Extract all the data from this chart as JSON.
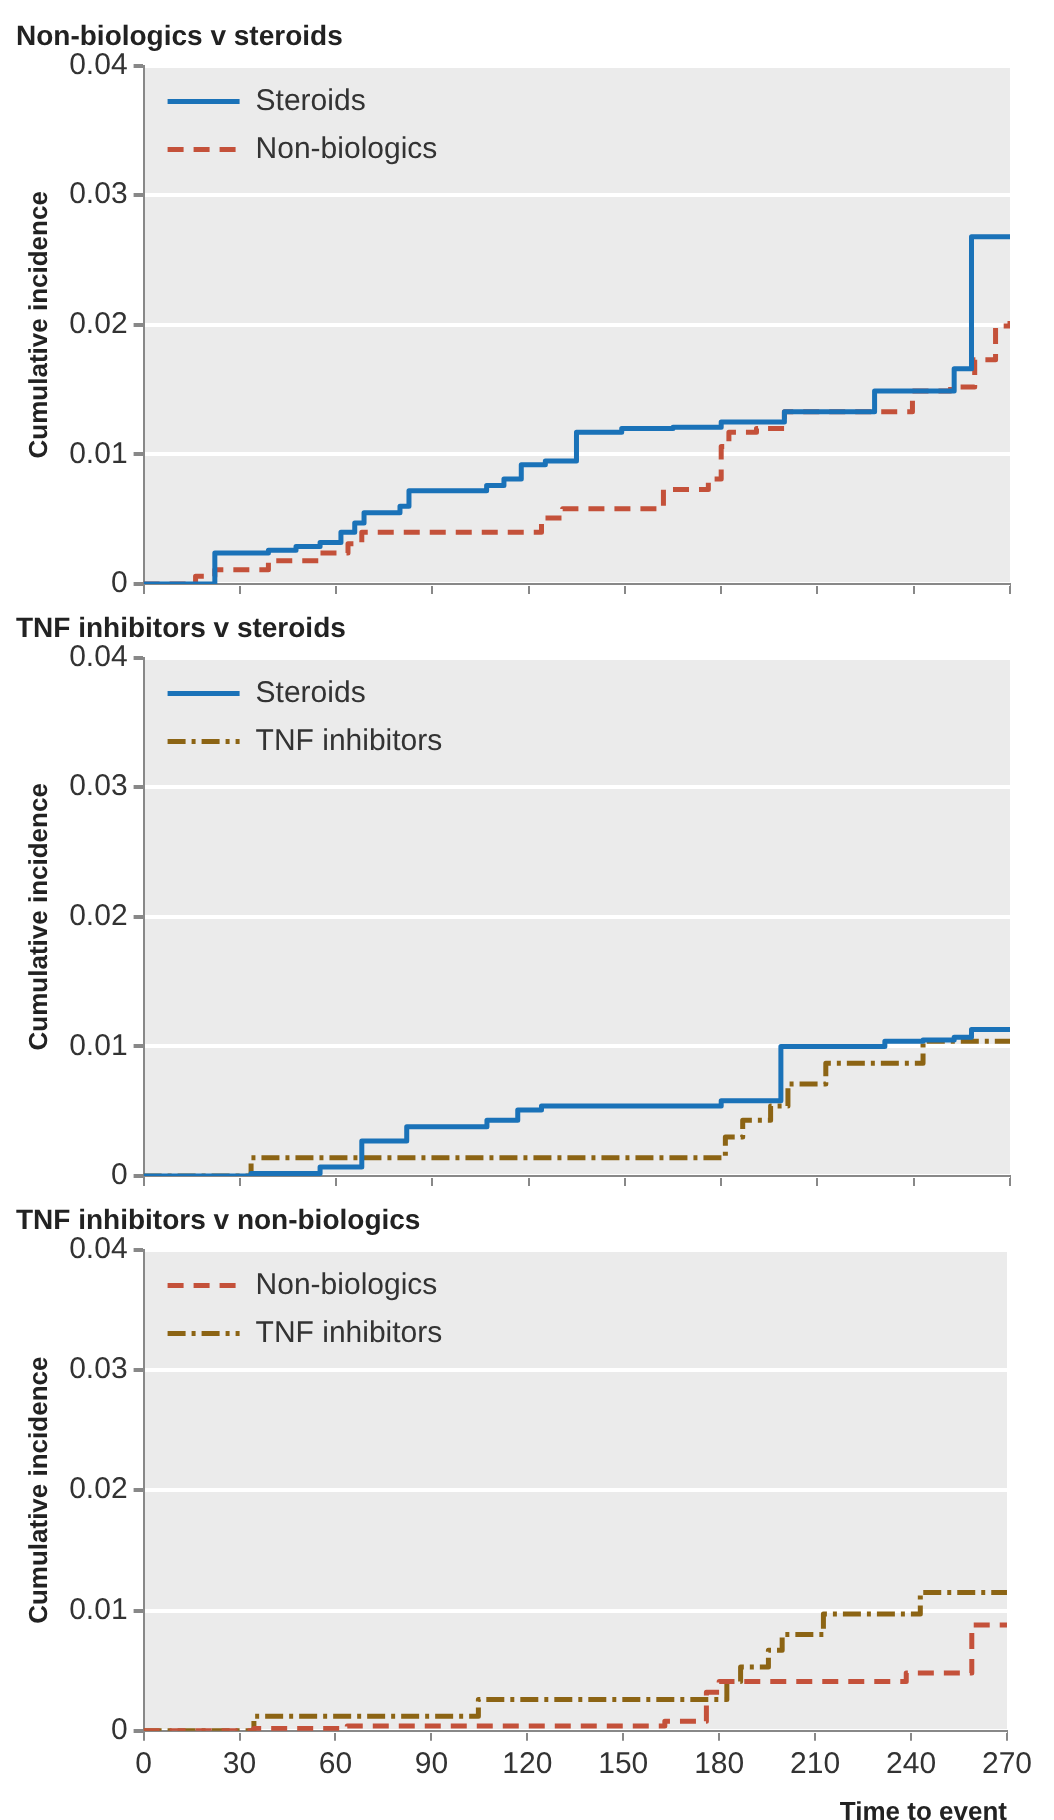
{
  "chart_data": [
    {
      "type": "step",
      "title": "Non-biologics v steroids",
      "ylabel": "Cumulative incidence",
      "xlim": [
        0,
        270
      ],
      "xticks": [
        0,
        30,
        60,
        90,
        120,
        150,
        180,
        210,
        240,
        270
      ],
      "ylim": [
        0,
        0.04
      ],
      "yticks": [
        0,
        0.01,
        0.02,
        0.03,
        0.04
      ],
      "tick_labels": "y",
      "grid": "y",
      "legend": "top left",
      "series": [
        {
          "name": "Steroids",
          "color": "#1a72b8",
          "line_style": "solid",
          "x": [
            0,
            22.2,
            38.9,
            47.5,
            55,
            61.5,
            65.8,
            68.7,
            79.9,
            82.7,
            106.9,
            112.3,
            117.7,
            125.2,
            134.9,
            149,
            165,
            180,
            199.7,
            227.8,
            252.6,
            258,
            270
          ],
          "values": [
            0,
            0.0024,
            0.0026,
            0.0029,
            0.0032,
            0.004,
            0.0047,
            0.0055,
            0.006,
            0.0072,
            0.0076,
            0.0081,
            0.0092,
            0.0095,
            0.0117,
            0.012,
            0.0121,
            0.0125,
            0.0133,
            0.0149,
            0.0166,
            0.0268,
            0.0268
          ]
        },
        {
          "name": "Non-biologics",
          "color": "#c4513a",
          "line_style": "dashed",
          "x": [
            0,
            16.2,
            22.2,
            38.9,
            55,
            63.7,
            68,
            124,
            130.6,
            162,
            176,
            180,
            182.4,
            191,
            199.7,
            239.6,
            251.5,
            259,
            265.5,
            270
          ],
          "values": [
            0,
            0.0006,
            0.0011,
            0.0018,
            0.0024,
            0.0031,
            0.004,
            0.0051,
            0.0058,
            0.0073,
            0.0081,
            0.0106,
            0.0117,
            0.012,
            0.0133,
            0.0149,
            0.0152,
            0.0173,
            0.0199,
            0.0203
          ]
        }
      ]
    },
    {
      "type": "step",
      "title": "TNF inhibitors v steroids",
      "ylabel": "Cumulative incidence",
      "xlim": [
        0,
        270
      ],
      "xticks": [
        0,
        30,
        60,
        90,
        120,
        150,
        180,
        210,
        240,
        270
      ],
      "ylim": [
        0,
        0.04
      ],
      "yticks": [
        0,
        0.01,
        0.02,
        0.03,
        0.04
      ],
      "tick_labels": "y",
      "grid": "y",
      "legend": "top left",
      "series": [
        {
          "name": "Steroids",
          "color": "#1a72b8",
          "line_style": "solid",
          "x": [
            0,
            33.5,
            55,
            68,
            82,
            107,
            116.6,
            124,
            180,
            198.6,
            231,
            242.9,
            252.6,
            258,
            270
          ],
          "values": [
            0,
            0.0002,
            0.0007,
            0.0027,
            0.0038,
            0.0043,
            0.0051,
            0.0054,
            0.0058,
            0.01,
            0.0104,
            0.0105,
            0.0107,
            0.0113,
            0.0113
          ]
        },
        {
          "name": "TNF inhibitors",
          "color": "#8c6414",
          "line_style": "dashdot",
          "x": [
            0,
            33.5,
            181.3,
            186.7,
            195.4,
            200.8,
            212.6,
            242.9,
            270
          ],
          "values": [
            0,
            0.0014,
            0.003,
            0.0043,
            0.0054,
            0.0071,
            0.0087,
            0.0104,
            0.0104
          ]
        }
      ]
    },
    {
      "type": "step",
      "title": "TNF inhibitors v non-biologics",
      "ylabel": "Cumulative incidence",
      "xlabel": "Time to event",
      "xlim": [
        0,
        270
      ],
      "xticks": [
        0,
        30,
        60,
        90,
        120,
        150,
        180,
        210,
        240,
        270
      ],
      "ylim": [
        0,
        0.04
      ],
      "yticks": [
        0,
        0.01,
        0.02,
        0.03,
        0.04
      ],
      "grid": "y",
      "legend": "top left",
      "series": [
        {
          "name": "Non-biologics",
          "color": "#c4513a",
          "line_style": "dashed",
          "x": [
            0,
            34.5,
            63.7,
            163,
            176,
            180,
            238.5,
            259,
            270
          ],
          "values": [
            0,
            0.0002,
            0.0004,
            0.0008,
            0.0032,
            0.0041,
            0.0048,
            0.0088,
            0.0088
          ]
        },
        {
          "name": "TNF inhibitors",
          "color": "#8c6414",
          "line_style": "dashdot",
          "x": [
            0,
            34.5,
            104.7,
            182.4,
            186.7,
            195.4,
            199.7,
            212.6,
            242.9,
            270
          ],
          "values": [
            0,
            0.0012,
            0.0026,
            0.0041,
            0.0053,
            0.0067,
            0.008,
            0.0097,
            0.0115,
            0.0115
          ]
        }
      ]
    }
  ]
}
